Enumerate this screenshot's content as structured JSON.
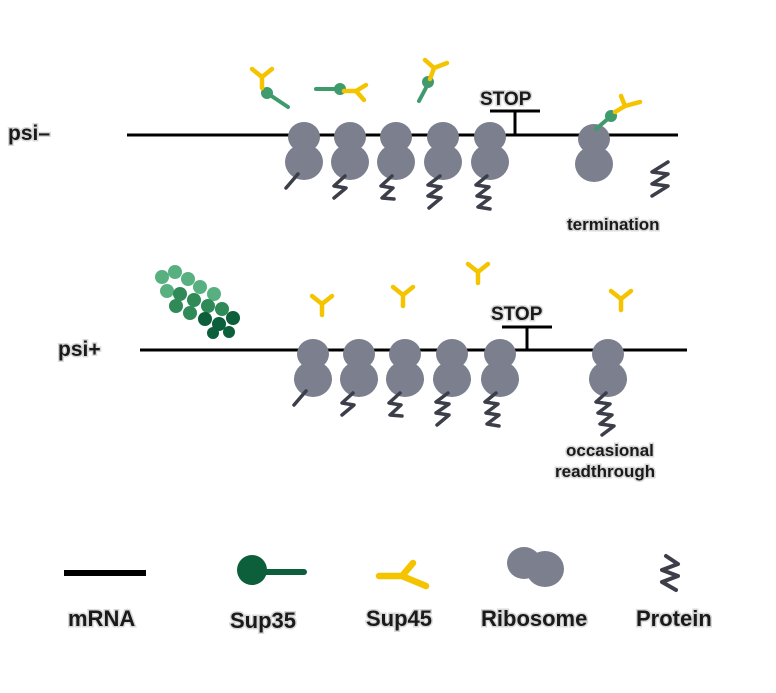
{
  "rows": {
    "psi_minus": {
      "label": "psi–",
      "stop": "STOP",
      "outcome": "termination"
    },
    "psi_plus": {
      "label": "psi+",
      "stop": "STOP",
      "outcome_line1": "occasional",
      "outcome_line2": "readthrough"
    }
  },
  "legend": {
    "mrna": "mRNA",
    "sup35": "Sup35",
    "sup45": "Sup45",
    "ribosome": "Ribosome",
    "protein": "Protein"
  },
  "colors": {
    "mrna": "#000000",
    "ribosome": "#7b7f8e",
    "sup35_dark": "#0d5e3a",
    "sup35_light": "#3f9a6c",
    "sup45": "#f5c400",
    "protein": "#3c3f4a"
  }
}
